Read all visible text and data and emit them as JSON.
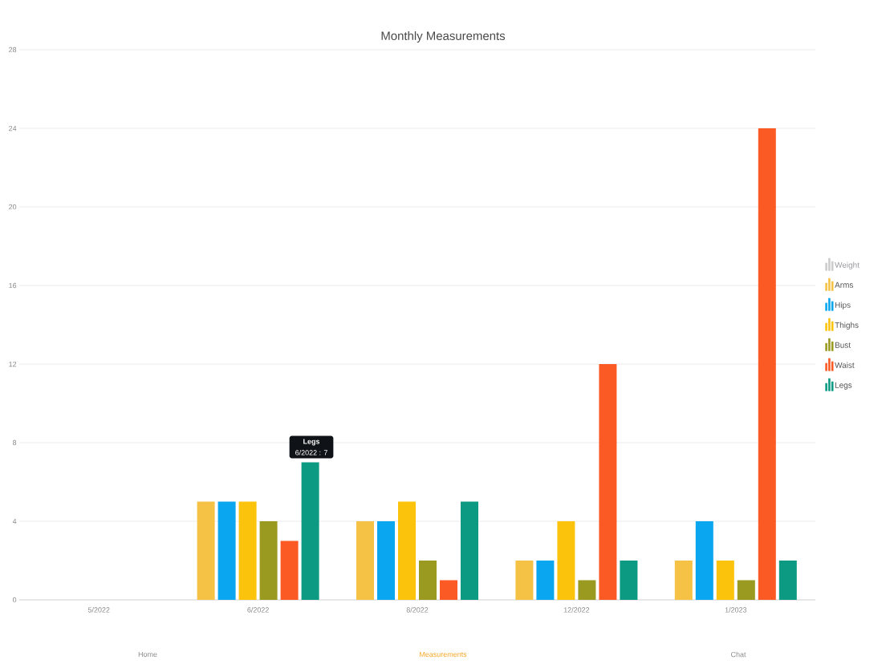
{
  "chart_data": {
    "type": "bar",
    "title": "Monthly Measurements",
    "categories": [
      "5/2022",
      "6/2022",
      "8/2022",
      "12/2022",
      "1/2023"
    ],
    "series": [
      {
        "name": "Weight",
        "color": "#cccccc",
        "values": [
          null,
          null,
          null,
          null,
          null
        ]
      },
      {
        "name": "Arms",
        "color": "#f5c245",
        "values": [
          null,
          5,
          4,
          2,
          2
        ]
      },
      {
        "name": "Hips",
        "color": "#0aa6ef",
        "values": [
          null,
          5,
          4,
          2,
          4
        ]
      },
      {
        "name": "Thighs",
        "color": "#fcc30c",
        "values": [
          null,
          5,
          5,
          4,
          2
        ]
      },
      {
        "name": "Bust",
        "color": "#999a1f",
        "values": [
          null,
          4,
          2,
          1,
          1
        ]
      },
      {
        "name": "Waist",
        "color": "#fc5a24",
        "values": [
          null,
          3,
          1,
          12,
          24
        ]
      },
      {
        "name": "Legs",
        "color": "#0d9a83",
        "values": [
          null,
          7,
          5,
          2,
          2
        ]
      }
    ],
    "ylim": [
      0,
      28
    ],
    "yticks": [
      0,
      4,
      8,
      12,
      16,
      20,
      24,
      28
    ],
    "grid": "y",
    "legend": "right",
    "annotations": [
      "Legs",
      "6/2022 : 7",
      "Home",
      "Measurements",
      "Chat"
    ]
  }
}
